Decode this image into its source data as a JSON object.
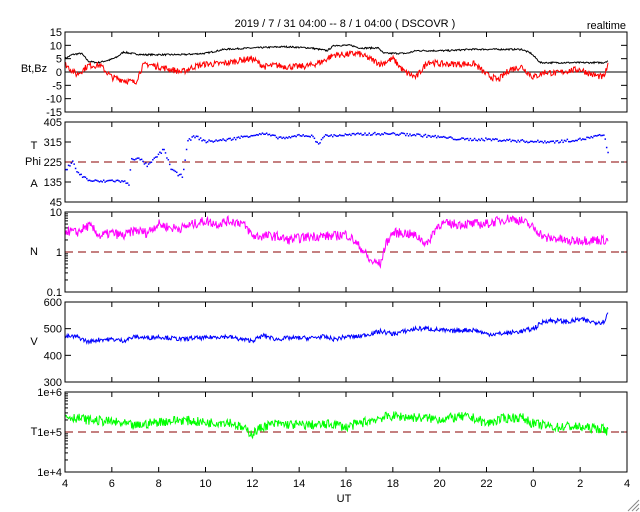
{
  "chart_data": {
    "type": "line",
    "title": "2019 / 7 / 31   04:00 --  8 / 1   04:00 ( DSCOVR )",
    "badge": "realtime",
    "xlabel": "UT",
    "x_unit": "hours since 2019-07-31 04:00 UT",
    "xlim": [
      0,
      24
    ],
    "x_tick_labels": [
      "4",
      "6",
      "8",
      "10",
      "12",
      "14",
      "16",
      "18",
      "20",
      "22",
      "0",
      "2",
      "4"
    ],
    "panels": [
      {
        "id": "bt-bz",
        "ylabel": [
          "Bt,Bz"
        ],
        "scale": "linear",
        "ylim": [
          -15,
          15
        ],
        "y_ticks": [
          15,
          10,
          5,
          0,
          -5,
          -10,
          -15
        ],
        "y_tick_labels": [
          "15",
          "10",
          "5",
          "0",
          "-5",
          "-10",
          "-15"
        ],
        "reference_line": {
          "value": 0,
          "style": "solid",
          "color": "#000000"
        },
        "series": [
          {
            "name": "Bt",
            "color": "#000000",
            "style": "line",
            "x": [
              0,
              0.3,
              0.7,
              1.0,
              1.4,
              1.9,
              2.2,
              2.5,
              2.8,
              3.3,
              4,
              5,
              6,
              6.8,
              8,
              9.4,
              10.5,
              11.2,
              11.5,
              12.2,
              12.6,
              13.4,
              13.6,
              14.6,
              15,
              16.4,
              17.3,
              19.5,
              19.9,
              20.3,
              23,
              23.2
            ],
            "y": [
              5,
              6.5,
              7,
              4,
              3.5,
              4.5,
              5.5,
              7.5,
              7,
              6.5,
              6.5,
              6.5,
              7,
              8.5,
              9,
              9.5,
              9,
              8,
              10,
              10,
              9,
              9,
              7,
              7,
              8,
              8,
              8.5,
              8.5,
              7,
              3.5,
              3.5,
              4.3
            ]
          },
          {
            "name": "Bz",
            "color": "#ff0000",
            "style": "line",
            "x": [
              0,
              0.5,
              1,
              1.5,
              2,
              2.5,
              3,
              3.3,
              3.5,
              4,
              4.5,
              5,
              5.5,
              6,
              6.5,
              7,
              7.5,
              8,
              8.5,
              9,
              9.5,
              10,
              10.5,
              11,
              11.5,
              12,
              12.5,
              13,
              13.5,
              14,
              14.5,
              15,
              15.5,
              16,
              16.5,
              17,
              17.5,
              18,
              18.5,
              19,
              19.5,
              20,
              20.5,
              21,
              21.5,
              22,
              22.5,
              23,
              23.2
            ],
            "y": [
              3,
              -1,
              2.5,
              2.5,
              -2,
              -3,
              -4,
              2,
              3,
              2,
              1,
              0,
              2,
              3,
              3,
              3.5,
              4.5,
              5,
              2,
              2.5,
              2,
              2,
              2.5,
              4,
              6.5,
              6.5,
              7,
              5,
              3,
              5,
              0,
              -2,
              4,
              3,
              3,
              3,
              3,
              -1,
              -3,
              1,
              2,
              -2,
              0,
              -0.5,
              0.5,
              1,
              -1,
              -2,
              2.5
            ]
          }
        ]
      },
      {
        "id": "phi",
        "ylabel": [
          "T",
          "Phi",
          "A"
        ],
        "scale": "linear",
        "ylim": [
          45,
          405
        ],
        "y_ticks": [
          405,
          315,
          225,
          135,
          45
        ],
        "y_tick_labels": [
          "405",
          "315",
          "225",
          "135",
          "45"
        ],
        "reference_line": {
          "value": 225,
          "style": "dashed",
          "color": "#8b0000"
        },
        "series": [
          {
            "name": "Phi",
            "color": "#0000ff",
            "style": "dots",
            "x": [
              0,
              0.3,
              0.5,
              1,
              1.5,
              2,
              2.5,
              2.7,
              2.8,
              3.2,
              3.5,
              4,
              4.2,
              4.5,
              4.8,
              5,
              5.2,
              5.5,
              6,
              6.5,
              7,
              7.5,
              8,
              8.5,
              9,
              9.5,
              10,
              10.5,
              10.8,
              11,
              12,
              13,
              14,
              15,
              16,
              17,
              18,
              19,
              20,
              21,
              22,
              23,
              23.2
            ],
            "y": [
              190,
              235,
              180,
              145,
              140,
              145,
              140,
              125,
              245,
              240,
              210,
              265,
              285,
              200,
              170,
              165,
              320,
              345,
              320,
              325,
              330,
              340,
              350,
              355,
              340,
              335,
              350,
              345,
              310,
              345,
              350,
              355,
              355,
              350,
              340,
              330,
              330,
              325,
              320,
              320,
              330,
              350,
              245
            ]
          }
        ]
      },
      {
        "id": "density",
        "ylabel": [
          "N"
        ],
        "scale": "log",
        "ylim": [
          0.1,
          10
        ],
        "y_ticks": [
          10,
          1,
          0.1
        ],
        "y_tick_labels": [
          "10",
          "1",
          "0.1"
        ],
        "reference_line": {
          "value": 1,
          "style": "dashed",
          "color": "#8b0000"
        },
        "series": [
          {
            "name": "N",
            "color": "#ff00ff",
            "style": "line",
            "x": [
              0,
              0.5,
              1,
              1.5,
              2,
              2.5,
              3,
              3.5,
              4,
              4.5,
              5,
              5.5,
              6,
              6.5,
              7,
              7.5,
              8,
              8.5,
              9,
              9.5,
              10,
              10.5,
              11,
              11.5,
              12,
              12.5,
              13,
              13.5,
              14,
              14.5,
              15,
              15.5,
              16,
              16.5,
              17,
              17.5,
              18,
              18.5,
              19,
              19.5,
              20,
              20.5,
              21,
              21.5,
              22,
              22.5,
              23,
              23.2
            ],
            "y": [
              3.5,
              3,
              4.5,
              2.5,
              3,
              2.5,
              3.5,
              3,
              5,
              4,
              4,
              5,
              6,
              5,
              6,
              5.5,
              2.5,
              2.5,
              2.5,
              2,
              2.2,
              2.5,
              2.5,
              2.5,
              2.8,
              1.5,
              0.6,
              0.5,
              3,
              3,
              2.5,
              1.5,
              5,
              5,
              5,
              5,
              5,
              6,
              7,
              6,
              4,
              2.2,
              2.2,
              1.8,
              2,
              2,
              2,
              2
            ]
          }
        ]
      },
      {
        "id": "velocity",
        "ylabel": [
          "V"
        ],
        "scale": "linear",
        "ylim": [
          300,
          600
        ],
        "y_ticks": [
          600,
          500,
          400,
          300
        ],
        "y_tick_labels": [
          "600",
          "500",
          "400",
          "300"
        ],
        "series": [
          {
            "name": "V",
            "color": "#0000ff",
            "style": "line",
            "x": [
              0,
              0.5,
              1,
              1.5,
              2,
              2.5,
              3,
              3.5,
              4,
              4.5,
              5,
              5.5,
              6,
              6.5,
              7,
              7.5,
              8,
              8.5,
              9,
              9.5,
              10,
              10.5,
              11,
              11.5,
              12,
              12.5,
              13,
              13.5,
              14,
              14.5,
              15,
              15.5,
              16,
              16.5,
              17,
              17.5,
              18,
              18.5,
              19,
              19.5,
              20,
              20.5,
              21,
              21.5,
              22,
              22.5,
              23,
              23.2
            ],
            "y": [
              470,
              470,
              450,
              460,
              460,
              455,
              470,
              465,
              470,
              465,
              460,
              465,
              465,
              470,
              470,
              460,
              455,
              475,
              460,
              465,
              465,
              465,
              470,
              460,
              470,
              470,
              480,
              490,
              480,
              490,
              500,
              500,
              495,
              490,
              495,
              495,
              480,
              480,
              485,
              490,
              500,
              530,
              530,
              525,
              535,
              525,
              525,
              560
            ]
          }
        ]
      },
      {
        "id": "temperature",
        "ylabel": [
          "T"
        ],
        "scale": "log",
        "ylim": [
          10000,
          1000000
        ],
        "y_ticks": [
          1000000,
          100000,
          10000
        ],
        "y_tick_labels": [
          "1e+6",
          "1e+5",
          "1e+4"
        ],
        "reference_line": {
          "value": 100000,
          "style": "dashed",
          "color": "#8b0000"
        },
        "series": [
          {
            "name": "T",
            "color": "#00ff00",
            "style": "line",
            "x": [
              0,
              1,
              2,
              3,
              4,
              5,
              6,
              7,
              7.5,
              8,
              8.5,
              9,
              10,
              11,
              11.5,
              12,
              12.5,
              13,
              13.5,
              14,
              15,
              16,
              17,
              17.5,
              18,
              18.5,
              19,
              19.5,
              20,
              21,
              21.5,
              22,
              23,
              23.2
            ],
            "y": [
              250000,
              200000,
              180000,
              140000,
              180000,
              200000,
              170000,
              180000,
              130000,
              90000,
              140000,
              160000,
              150000,
              150000,
              160000,
              130000,
              160000,
              190000,
              230000,
              250000,
              230000,
              210000,
              240000,
              220000,
              160000,
              200000,
              230000,
              230000,
              160000,
              130000,
              140000,
              130000,
              120000,
              100000
            ]
          }
        ]
      }
    ]
  }
}
